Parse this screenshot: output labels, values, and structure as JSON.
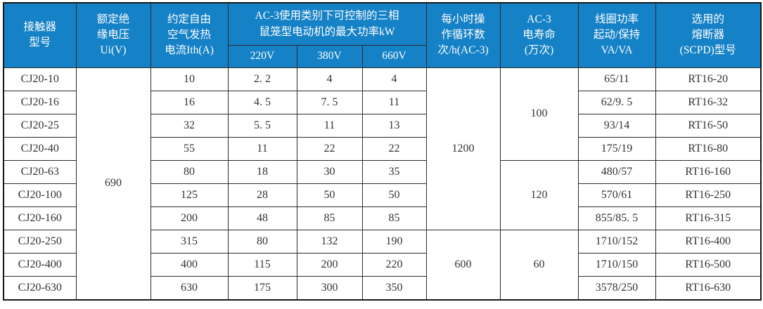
{
  "table": {
    "title": "CJ20 contactor specification table",
    "colors": {
      "header_bg": "#1581c6",
      "header_text": "#ffffff",
      "body_text": "#333333",
      "border": "#2b2b2b"
    },
    "header": {
      "model": "接触器\n型号",
      "insulation_voltage": "额定绝\n缘电压\nUi(V)",
      "thermal_current": "约定自由\n空气发热\n电流Ith(A)",
      "ac3_power_group": "AC-3使用类别下可控制的三相\n鼠笼型电动机的最大功率kW",
      "v220": "220V",
      "v380": "380V",
      "v660": "660V",
      "cycles": "每小时操\n作循环数\n次/h(AC-3)",
      "electrical_life": "AC-3\n电寿命\n(万次)",
      "coil_power": "线圈功率\n起动/保持\nVA/VA",
      "fuse": "选用的\n熔断器\n(SCPD)型号"
    },
    "merged": {
      "insulation_voltage": [
        {
          "value": "690",
          "start": 0,
          "span": 10
        }
      ],
      "cycles": [
        {
          "value": "1200",
          "start": 0,
          "span": 7
        },
        {
          "value": "600",
          "start": 7,
          "span": 3
        }
      ],
      "electrical_life": [
        {
          "value": "100",
          "start": 0,
          "span": 4
        },
        {
          "value": "120",
          "start": 4,
          "span": 3
        },
        {
          "value": "60",
          "start": 7,
          "span": 3
        }
      ]
    },
    "rows": [
      {
        "model": "CJ20-10",
        "ith": "10",
        "p220": "2. 2",
        "p380": "4",
        "p660": "4",
        "coil": "65/11",
        "fuse": "RT16-20"
      },
      {
        "model": "CJ20-16",
        "ith": "16",
        "p220": "4. 5",
        "p380": "7. 5",
        "p660": "11",
        "coil": "62/9. 5",
        "fuse": "RT16-32"
      },
      {
        "model": "CJ20-25",
        "ith": "32",
        "p220": "5. 5",
        "p380": "11",
        "p660": "13",
        "coil": "93/14",
        "fuse": "RT16-50"
      },
      {
        "model": "CJ20-40",
        "ith": "55",
        "p220": "11",
        "p380": "22",
        "p660": "22",
        "coil": "175/19",
        "fuse": "RT16-80"
      },
      {
        "model": "CJ20-63",
        "ith": "80",
        "p220": "18",
        "p380": "30",
        "p660": "35",
        "coil": "480/57",
        "fuse": "RT16-160"
      },
      {
        "model": "CJ20-100",
        "ith": "125",
        "p220": "28",
        "p380": "50",
        "p660": "50",
        "coil": "570/61",
        "fuse": "RT16-250"
      },
      {
        "model": "CJ20-160",
        "ith": "200",
        "p220": "48",
        "p380": "85",
        "p660": "85",
        "coil": "855/85. 5",
        "fuse": "RT16-315"
      },
      {
        "model": "CJ20-250",
        "ith": "315",
        "p220": "80",
        "p380": "132",
        "p660": "190",
        "coil": "1710/152",
        "fuse": "RT16-400"
      },
      {
        "model": "CJ20-400",
        "ith": "400",
        "p220": "115",
        "p380": "200",
        "p660": "220",
        "coil": "1710/150",
        "fuse": "RT16-500"
      },
      {
        "model": "CJ20-630",
        "ith": "630",
        "p220": "175",
        "p380": "300",
        "p660": "350",
        "coil": "3578/250",
        "fuse": "RT16-630"
      }
    ]
  }
}
